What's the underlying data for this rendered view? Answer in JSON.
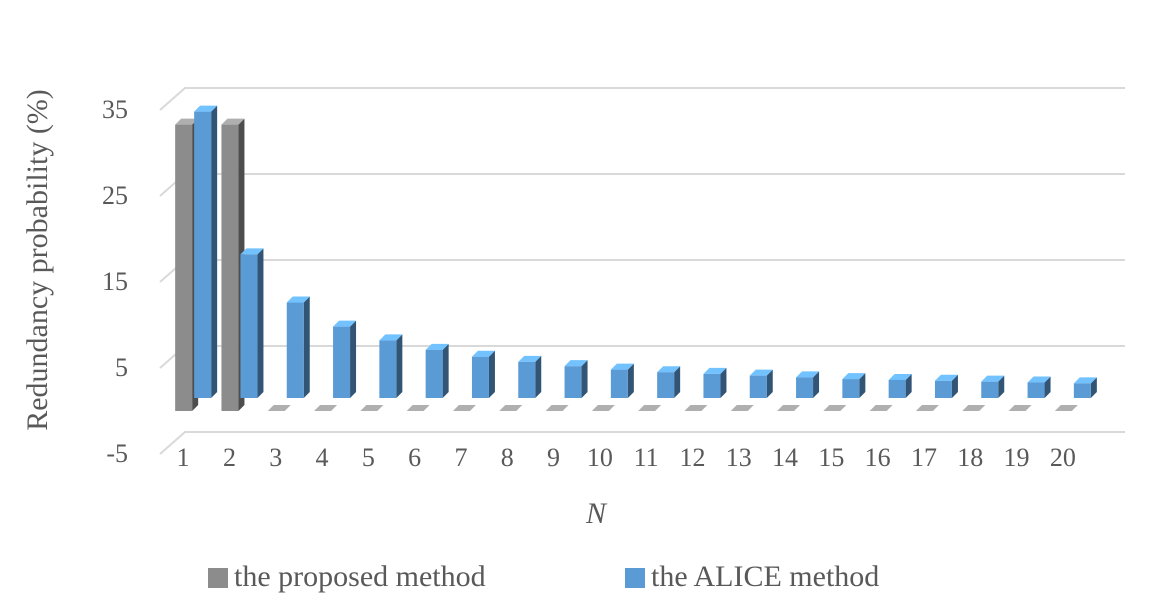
{
  "chart_data": {
    "type": "bar3d",
    "x_label": "N",
    "y_label": "Redundancy probability (%)",
    "categories": [
      "1",
      "2",
      "3",
      "4",
      "5",
      "6",
      "7",
      "8",
      "9",
      "10",
      "11",
      "12",
      "13",
      "14",
      "15",
      "16",
      "17",
      "18",
      "19",
      "20"
    ],
    "series": [
      {
        "name": "the proposed method",
        "color": "#8c8c8c",
        "values": [
          33.3,
          33.3,
          0,
          0,
          0,
          0,
          0,
          0,
          0,
          0,
          0,
          0,
          0,
          0,
          0,
          0,
          0,
          0,
          0,
          0
        ]
      },
      {
        "name": "the ALICE method",
        "color": "#5b9bd5",
        "values": [
          33.3,
          16.7,
          11.1,
          8.3,
          6.7,
          5.6,
          4.8,
          4.2,
          3.7,
          3.3,
          3.0,
          2.8,
          2.6,
          2.4,
          2.2,
          2.1,
          2.0,
          1.9,
          1.8,
          1.7
        ]
      }
    ],
    "ylim": [
      -5,
      35
    ],
    "yticks": [
      -5,
      5,
      15,
      25,
      35
    ],
    "grid": true,
    "legend": "bottom"
  }
}
